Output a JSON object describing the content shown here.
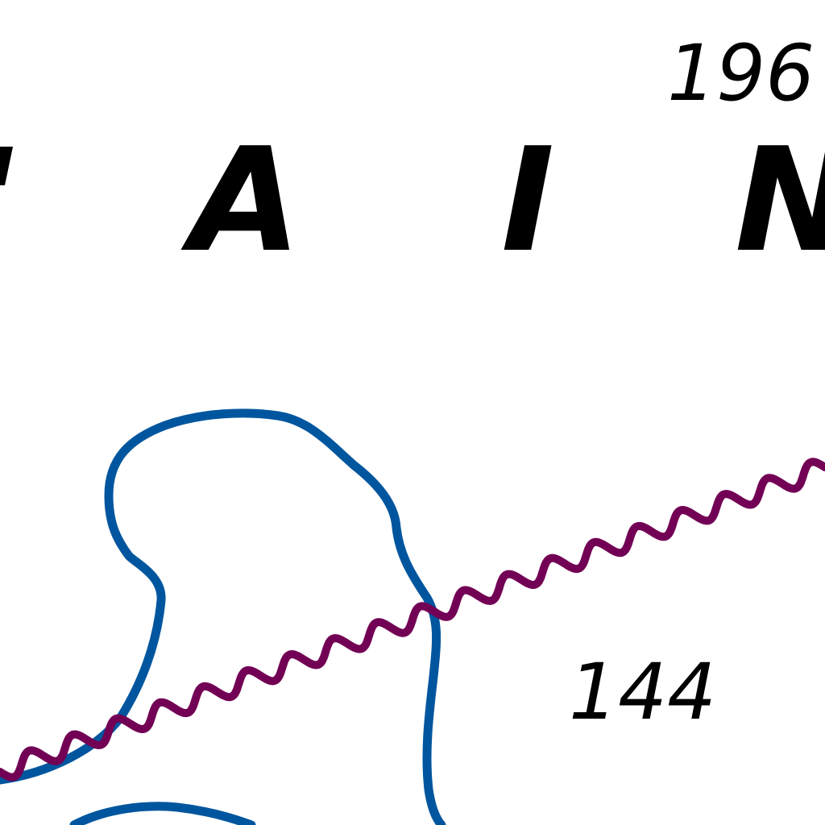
{
  "map": {
    "region_name_letters": [
      "A",
      "I",
      "N"
    ],
    "spot_heights": [
      "196",
      "144"
    ],
    "colors": {
      "background": "#ffffff",
      "river": "#00569e",
      "boundary": "#720055",
      "text": "#000000"
    }
  }
}
